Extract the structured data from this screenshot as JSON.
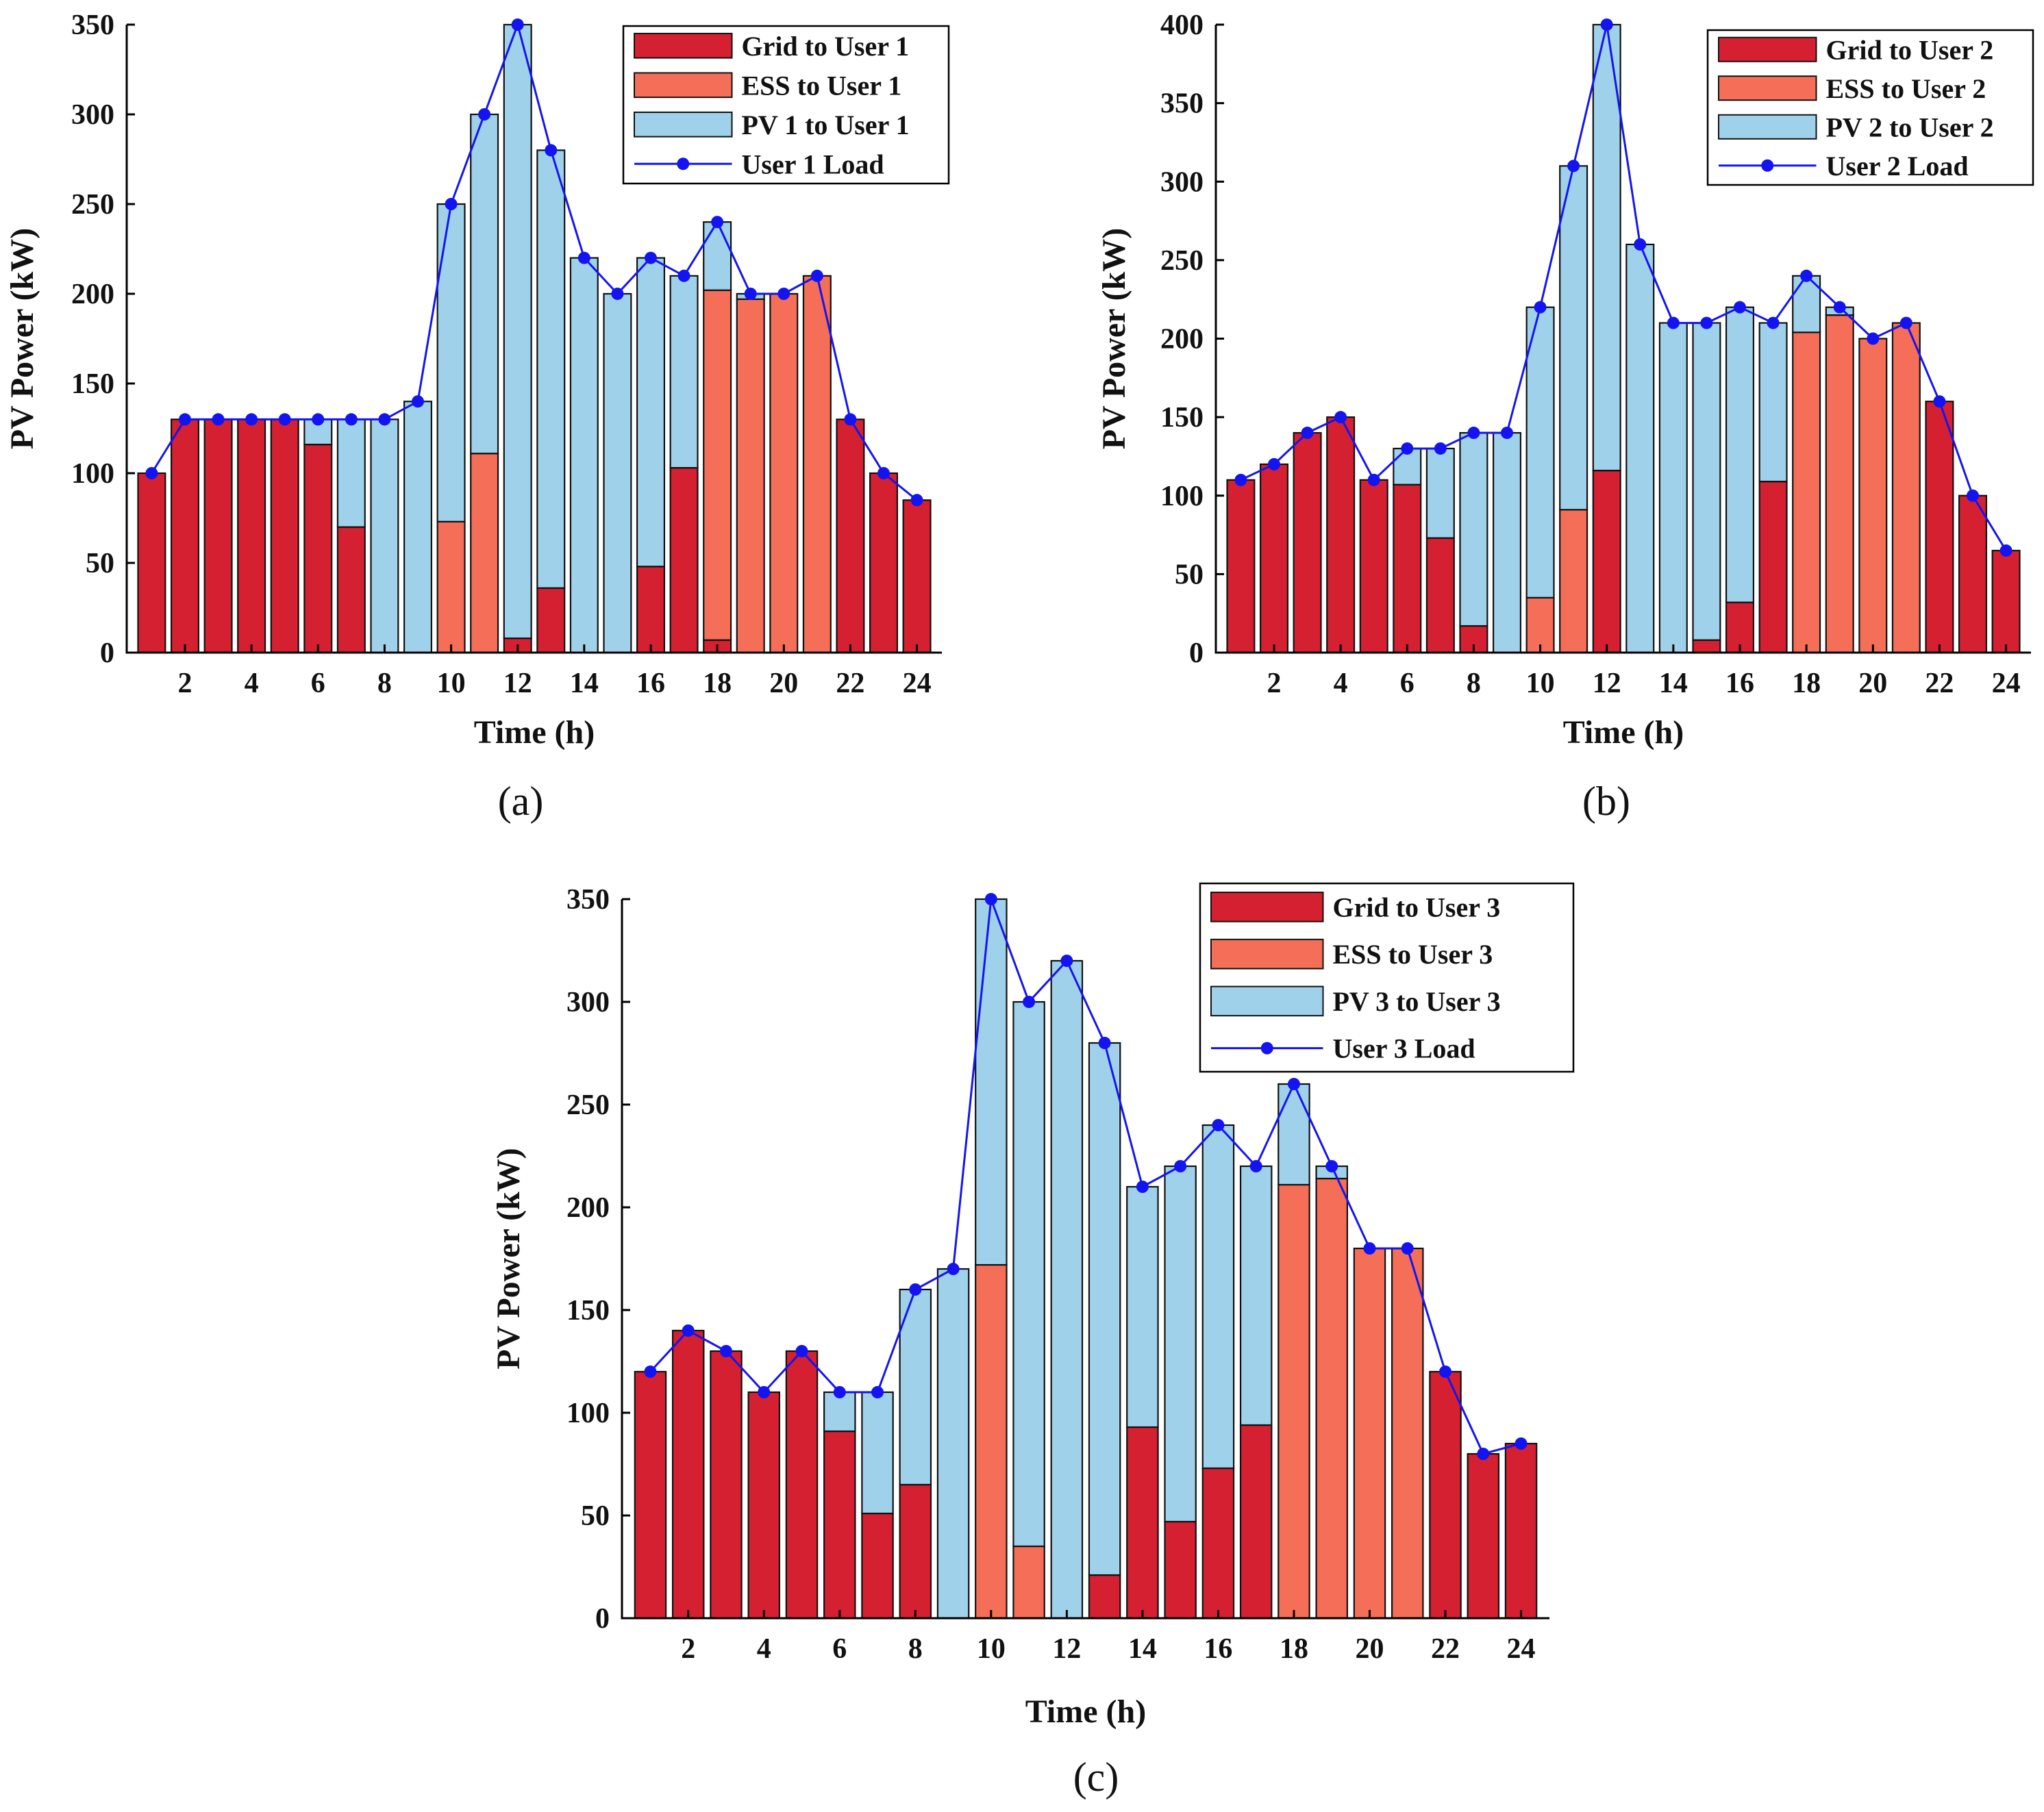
{
  "colors": {
    "grid": "#d42031",
    "ess": "#f56e57",
    "pv": "#9fd1ea",
    "load": "#1414f0",
    "edge": "#111111"
  },
  "chart_data": [
    {
      "id": "a",
      "type": "bar",
      "stacked": true,
      "caption": "(a)",
      "xlabel": "Time (h)",
      "ylabel": "PV Power (kW)",
      "ylim": [
        0,
        350
      ],
      "yticks": [
        0,
        50,
        100,
        150,
        200,
        250,
        300,
        350
      ],
      "xticks": [
        2,
        4,
        6,
        8,
        10,
        12,
        14,
        16,
        18,
        20,
        22,
        24
      ],
      "x": [
        1,
        2,
        3,
        4,
        5,
        6,
        7,
        8,
        9,
        10,
        11,
        12,
        13,
        14,
        15,
        16,
        17,
        18,
        19,
        20,
        21,
        22,
        23,
        24
      ],
      "legend_position": "top-right",
      "series": [
        {
          "name": "Grid to User 1",
          "kind": "bar",
          "color": "grid",
          "values": [
            100,
            130,
            130,
            130,
            130,
            116,
            70,
            0,
            0,
            0,
            0,
            8,
            36,
            0,
            0,
            48,
            103,
            7,
            0,
            0,
            0,
            130,
            100,
            85
          ]
        },
        {
          "name": "ESS to User 1",
          "kind": "bar",
          "color": "ess",
          "values": [
            0,
            0,
            0,
            0,
            0,
            0,
            0,
            0,
            0,
            73,
            111,
            0,
            0,
            0,
            0,
            0,
            0,
            195,
            197,
            200,
            210,
            0,
            0,
            0
          ]
        },
        {
          "name": "PV 1 to User 1",
          "kind": "bar",
          "color": "pv",
          "values": [
            0,
            0,
            0,
            0,
            0,
            14,
            60,
            130,
            140,
            177,
            189,
            342,
            244,
            220,
            200,
            172,
            107,
            38,
            3,
            0,
            0,
            0,
            0,
            0
          ]
        },
        {
          "name": "User 1 Load",
          "kind": "line",
          "color": "load",
          "values": [
            100,
            130,
            130,
            130,
            130,
            130,
            130,
            130,
            140,
            250,
            300,
            350,
            280,
            220,
            200,
            220,
            210,
            240,
            200,
            200,
            210,
            130,
            100,
            85
          ]
        }
      ]
    },
    {
      "id": "b",
      "type": "bar",
      "stacked": true,
      "caption": "(b)",
      "xlabel": "Time (h)",
      "ylabel": "PV Power (kW)",
      "ylim": [
        0,
        400
      ],
      "yticks": [
        0,
        50,
        100,
        150,
        200,
        250,
        300,
        350,
        400
      ],
      "xticks": [
        2,
        4,
        6,
        8,
        10,
        12,
        14,
        16,
        18,
        20,
        22,
        24
      ],
      "x": [
        1,
        2,
        3,
        4,
        5,
        6,
        7,
        8,
        9,
        10,
        11,
        12,
        13,
        14,
        15,
        16,
        17,
        18,
        19,
        20,
        21,
        22,
        23,
        24
      ],
      "legend_position": "top-right",
      "series": [
        {
          "name": "Grid to User 2",
          "kind": "bar",
          "color": "grid",
          "values": [
            110,
            120,
            140,
            150,
            110,
            107,
            73,
            17,
            0,
            0,
            0,
            116,
            0,
            0,
            8,
            32,
            109,
            0,
            0,
            0,
            0,
            160,
            100,
            65
          ]
        },
        {
          "name": "ESS to User 2",
          "kind": "bar",
          "color": "ess",
          "values": [
            0,
            0,
            0,
            0,
            0,
            0,
            0,
            0,
            0,
            35,
            91,
            0,
            0,
            0,
            0,
            0,
            0,
            204,
            215,
            200,
            210,
            0,
            0,
            0
          ]
        },
        {
          "name": "PV 2 to User 2",
          "kind": "bar",
          "color": "pv",
          "values": [
            0,
            0,
            0,
            0,
            0,
            23,
            57,
            123,
            140,
            185,
            219,
            284,
            260,
            210,
            202,
            188,
            101,
            36,
            5,
            0,
            0,
            0,
            0,
            0
          ]
        },
        {
          "name": "User 2 Load",
          "kind": "line",
          "color": "load",
          "values": [
            110,
            120,
            140,
            150,
            110,
            130,
            130,
            140,
            140,
            220,
            310,
            400,
            260,
            210,
            210,
            220,
            210,
            240,
            220,
            200,
            210,
            160,
            100,
            65
          ]
        }
      ]
    },
    {
      "id": "c",
      "type": "bar",
      "stacked": true,
      "caption": "(c)",
      "xlabel": "Time (h)",
      "ylabel": "PV Power (kW)",
      "ylim": [
        0,
        350
      ],
      "yticks": [
        0,
        50,
        100,
        150,
        200,
        250,
        300,
        350
      ],
      "xticks": [
        2,
        4,
        6,
        8,
        10,
        12,
        14,
        16,
        18,
        20,
        22,
        24
      ],
      "x": [
        1,
        2,
        3,
        4,
        5,
        6,
        7,
        8,
        9,
        10,
        11,
        12,
        13,
        14,
        15,
        16,
        17,
        18,
        19,
        20,
        21,
        22,
        23,
        24
      ],
      "legend_position": "top-right",
      "series": [
        {
          "name": "Grid to User 3",
          "kind": "bar",
          "color": "grid",
          "values": [
            120,
            140,
            130,
            110,
            130,
            91,
            51,
            65,
            0,
            0,
            0,
            0,
            21,
            93,
            47,
            73,
            94,
            0,
            0,
            0,
            0,
            120,
            80,
            85
          ]
        },
        {
          "name": "ESS to User 3",
          "kind": "bar",
          "color": "ess",
          "values": [
            0,
            0,
            0,
            0,
            0,
            0,
            0,
            0,
            0,
            172,
            35,
            0,
            0,
            0,
            0,
            0,
            0,
            211,
            214,
            180,
            180,
            0,
            0,
            0
          ]
        },
        {
          "name": "PV 3 to User 3",
          "kind": "bar",
          "color": "pv",
          "values": [
            0,
            0,
            0,
            0,
            0,
            19,
            59,
            95,
            170,
            178,
            265,
            320,
            259,
            117,
            173,
            167,
            126,
            49,
            6,
            0,
            0,
            0,
            0,
            0
          ]
        },
        {
          "name": "User 3 Load",
          "kind": "line",
          "color": "load",
          "values": [
            120,
            140,
            130,
            110,
            130,
            110,
            110,
            160,
            170,
            350,
            300,
            320,
            280,
            210,
            220,
            240,
            220,
            260,
            220,
            180,
            180,
            120,
            80,
            85
          ]
        }
      ]
    }
  ]
}
